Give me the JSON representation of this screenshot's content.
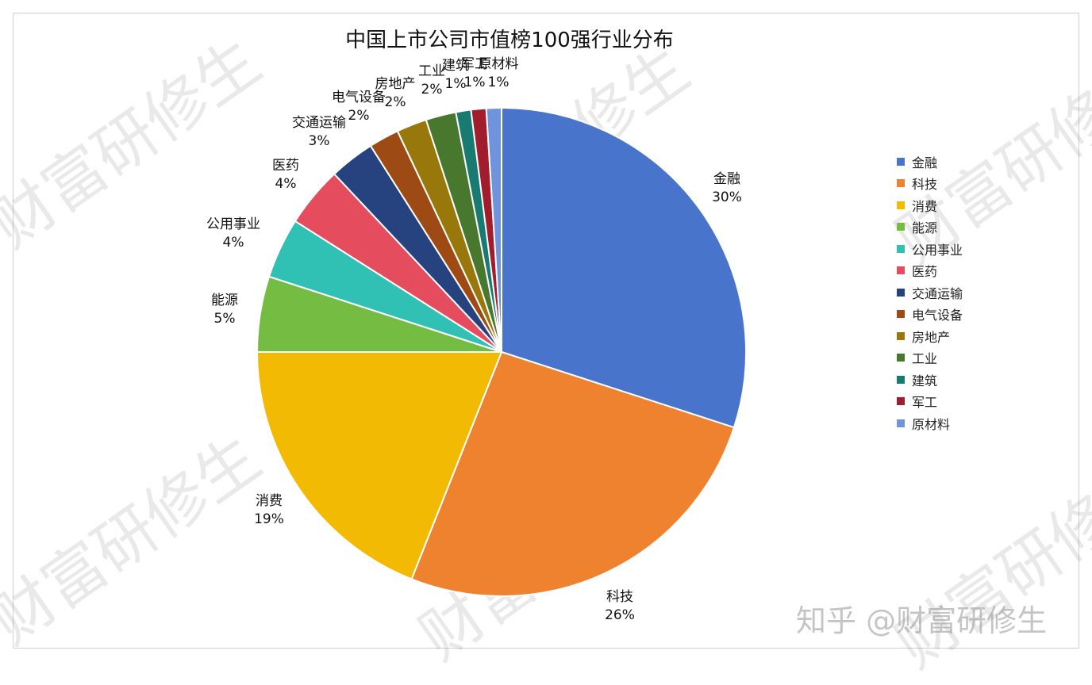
{
  "title": "中国上市公司市值榜100强行业分布",
  "chart_data": {
    "type": "pie",
    "title": "中国上市公司市值榜100强行业分布",
    "categories": [
      "金融",
      "科技",
      "消费",
      "能源",
      "公用事业",
      "医药",
      "交通运输",
      "电气设备",
      "房地产",
      "工业",
      "建筑",
      "军工",
      "原材料"
    ],
    "values": [
      30,
      26,
      19,
      5,
      4,
      4,
      3,
      2,
      2,
      2,
      1,
      1,
      1
    ],
    "labels": [
      "30%",
      "26%",
      "19%",
      "5%",
      "4%",
      "4%",
      "3%",
      "2%",
      "2%",
      "2%",
      "1%",
      "1%",
      "1%"
    ],
    "colors": [
      "#4874CB",
      "#EE822F",
      "#F2BA02",
      "#75BD42",
      "#30C0B4",
      "#E54C5E",
      "#26427F",
      "#9E4A14",
      "#98780A",
      "#47782D",
      "#197A71",
      "#A11C2D",
      "#6F93DD"
    ],
    "legend_position": "right",
    "start_angle": "12 o'clock, clockwise"
  },
  "legend": [
    {
      "label": "金融"
    },
    {
      "label": "科技"
    },
    {
      "label": "消费"
    },
    {
      "label": "能源"
    },
    {
      "label": "公用事业"
    },
    {
      "label": "医药"
    },
    {
      "label": "交通运输"
    },
    {
      "label": "电气设备"
    },
    {
      "label": "房地产"
    },
    {
      "label": "工业"
    },
    {
      "label": "建筑"
    },
    {
      "label": "军工"
    },
    {
      "label": "原材料"
    }
  ],
  "watermark": "财富研修生",
  "credit": "知乎 @财富研修生"
}
